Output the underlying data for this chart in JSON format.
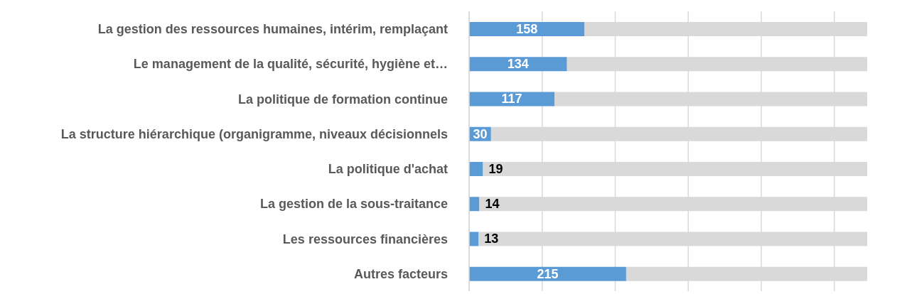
{
  "chart_data": {
    "type": "bar",
    "orientation": "horizontal",
    "categories": [
      "La gestion des ressources humaines, intérim, remplaçant",
      "Le management de la qualité, sécurité, hygiène et…",
      "La politique de formation continue",
      "La structure hiérarchique (organigramme, niveaux décisionnels",
      "La politique d'achat",
      "La gestion de la sous-traitance",
      "Les ressources financières",
      "Autres facteurs"
    ],
    "series": [
      {
        "color": "#5b9bd5",
        "values": [
          158,
          134,
          117,
          30,
          19,
          14,
          13,
          215
        ],
        "value_labels": [
          "158",
          "134",
          "117",
          "30",
          "19",
          "14",
          "13",
          "215"
        ]
      },
      {
        "color": "#d9d9d9",
        "values": [
          387,
          411,
          428,
          515,
          526,
          531,
          532,
          330
        ]
      }
    ],
    "stacked": true,
    "xticks": [
      {
        "value": 0,
        "label": null
      },
      {
        "value": 100,
        "label": null
      },
      {
        "value": 200,
        "label": null
      },
      {
        "value": 300,
        "label": null
      },
      {
        "value": 400,
        "label": null
      },
      {
        "value": 500,
        "label": null
      }
    ],
    "grid": "x",
    "tick_labels": "y",
    "legend": false
  }
}
